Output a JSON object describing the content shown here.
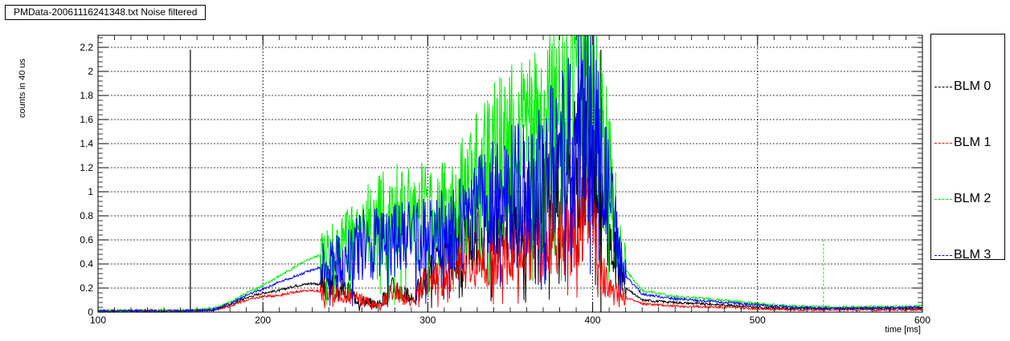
{
  "chart_data": {
    "type": "line",
    "title": "PMData-20061116241348.txt Noise filtered",
    "xlabel": "time [ms]",
    "ylabel": "counts in 40 us",
    "xlim": [
      100,
      600
    ],
    "ylim": [
      0,
      2.3
    ],
    "x_ticks": [
      100,
      200,
      300,
      400,
      500,
      600
    ],
    "y_ticks": [
      0,
      0.2,
      0.4,
      0.6,
      0.8,
      1,
      1.2,
      1.4,
      1.6,
      1.8,
      2,
      2.2
    ],
    "y_tick_labels": [
      "0",
      "0.2",
      "0.4",
      "0.6",
      "0.8",
      "1",
      "1.2",
      "1.4",
      "1.6",
      "1.8",
      "2",
      "2.2"
    ],
    "grid": true,
    "legend_position": "right",
    "vertical_markers": [
      156,
      405
    ],
    "series": [
      {
        "name": "BLM 0",
        "color": "#000000",
        "x": [
          100,
          150,
          170,
          180,
          190,
          200,
          210,
          220,
          230,
          240,
          250,
          260,
          270,
          280,
          290,
          300,
          310,
          320,
          330,
          340,
          350,
          360,
          370,
          380,
          390,
          395,
          400,
          405,
          410,
          420,
          430,
          450,
          480,
          500,
          520,
          550,
          600
        ],
        "y": [
          0.01,
          0.01,
          0.02,
          0.06,
          0.12,
          0.16,
          0.18,
          0.22,
          0.24,
          0.22,
          0.18,
          0.1,
          0.06,
          0.22,
          0.1,
          0.3,
          0.45,
          0.6,
          0.7,
          0.78,
          0.85,
          0.8,
          0.95,
          1.0,
          1.2,
          1.35,
          1.25,
          0.9,
          0.6,
          0.2,
          0.1,
          0.08,
          0.06,
          0.04,
          0.03,
          0.03,
          0.03
        ]
      },
      {
        "name": "BLM 1",
        "color": "#ff0000",
        "x": [
          100,
          150,
          170,
          180,
          190,
          200,
          210,
          220,
          230,
          240,
          250,
          260,
          270,
          280,
          290,
          300,
          310,
          320,
          330,
          340,
          350,
          360,
          370,
          380,
          390,
          395,
          400,
          405,
          410,
          420,
          430,
          450,
          480,
          500,
          520,
          550,
          600
        ],
        "y": [
          0.01,
          0.01,
          0.02,
          0.05,
          0.1,
          0.13,
          0.14,
          0.17,
          0.18,
          0.16,
          0.14,
          0.1,
          0.05,
          0.18,
          0.08,
          0.28,
          0.3,
          0.45,
          0.4,
          0.45,
          0.48,
          0.5,
          0.55,
          0.62,
          0.7,
          0.85,
          0.75,
          0.35,
          0.2,
          0.12,
          0.07,
          0.05,
          0.04,
          0.03,
          0.02,
          0.02,
          0.02
        ]
      },
      {
        "name": "BLM 2",
        "color": "#00ee00",
        "x": [
          100,
          150,
          170,
          180,
          190,
          200,
          210,
          220,
          230,
          240,
          250,
          260,
          270,
          280,
          290,
          300,
          310,
          320,
          330,
          340,
          350,
          360,
          370,
          380,
          390,
          395,
          400,
          405,
          410,
          420,
          430,
          450,
          480,
          500,
          520,
          550,
          600
        ],
        "y": [
          0.01,
          0.01,
          0.03,
          0.08,
          0.16,
          0.22,
          0.3,
          0.38,
          0.45,
          0.5,
          0.55,
          0.65,
          0.75,
          0.8,
          0.78,
          0.85,
          0.8,
          0.95,
          1.1,
          1.25,
          1.35,
          1.4,
          1.55,
          1.7,
          1.95,
          2.1,
          1.95,
          1.5,
          1.1,
          0.35,
          0.18,
          0.13,
          0.1,
          0.07,
          0.05,
          0.04,
          0.05
        ]
      },
      {
        "name": "BLM 3",
        "color": "#0000ff",
        "x": [
          100,
          150,
          170,
          180,
          190,
          200,
          210,
          220,
          230,
          240,
          250,
          260,
          270,
          280,
          290,
          300,
          310,
          320,
          330,
          340,
          350,
          360,
          370,
          380,
          390,
          395,
          400,
          405,
          410,
          420,
          430,
          450,
          480,
          500,
          520,
          550,
          600
        ],
        "y": [
          0.01,
          0.01,
          0.02,
          0.07,
          0.14,
          0.19,
          0.25,
          0.3,
          0.35,
          0.4,
          0.45,
          0.55,
          0.6,
          0.62,
          0.6,
          0.62,
          0.7,
          0.75,
          0.85,
          0.95,
          1.0,
          1.05,
          1.15,
          1.3,
          1.5,
          1.65,
          1.55,
          1.2,
          0.9,
          0.3,
          0.15,
          0.11,
          0.08,
          0.06,
          0.04,
          0.03,
          0.04
        ]
      }
    ]
  }
}
